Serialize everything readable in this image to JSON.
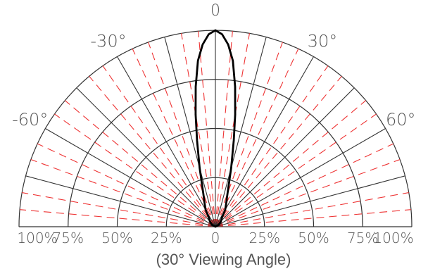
{
  "caption": "(30° Viewing Angle)",
  "chart_data": {
    "type": "polar",
    "title": "",
    "radial_unit": "%",
    "radial_ticks": [
      25,
      50,
      75,
      100
    ],
    "radial_tick_labels_left": [
      "100%",
      "75%",
      "50%",
      "25%"
    ],
    "radial_tick_labels_right": [
      "25%",
      "50%",
      "75%",
      "100%"
    ],
    "center_label": "0",
    "angle_range": [
      -90,
      90
    ],
    "major_angles": [
      -90,
      -75,
      -60,
      -45,
      -30,
      -15,
      0,
      15,
      30,
      45,
      60,
      75,
      90
    ],
    "minor_angles": [
      -85,
      -80,
      -70,
      -65,
      -55,
      -50,
      -40,
      -35,
      -25,
      -20,
      -10,
      -5,
      5,
      10,
      20,
      25,
      35,
      40,
      50,
      55,
      65,
      70,
      80,
      85
    ],
    "angle_labels": [
      {
        "angle": -60,
        "text": "-60°"
      },
      {
        "angle": -30,
        "text": "-30°"
      },
      {
        "angle": 0,
        "text": "0"
      },
      {
        "angle": 30,
        "text": "30°"
      },
      {
        "angle": 60,
        "text": "60°"
      }
    ],
    "colors": {
      "grid": "#333333",
      "minor_grid": "#ee3333",
      "curve": "#000000",
      "label": "#555555"
    },
    "series": [
      {
        "angles": [
          -90,
          -60,
          -45,
          -35,
          -30,
          -25,
          -20,
          -17,
          -15,
          -12,
          -10,
          -8,
          -6,
          -4,
          -2,
          0,
          2,
          4,
          6,
          8,
          10,
          12,
          15,
          17,
          20,
          25,
          30,
          35,
          45,
          60,
          90
        ],
        "values": [
          0,
          2,
          4,
          6,
          10,
          13,
          18,
          24,
          31,
          45,
          58,
          72,
          85,
          93,
          98,
          100,
          98,
          93,
          85,
          72,
          58,
          45,
          31,
          24,
          18,
          13,
          10,
          6,
          4,
          2,
          0
        ]
      }
    ]
  }
}
